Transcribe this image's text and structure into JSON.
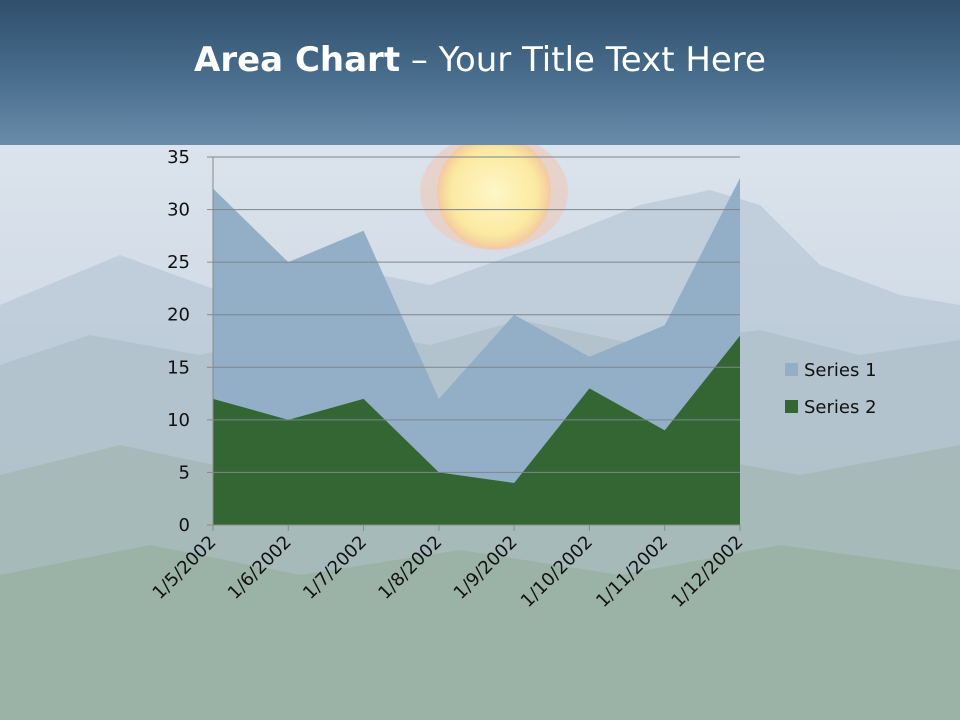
{
  "title": {
    "bold": "Area Chart",
    "rest": " – Your Title Text Here"
  },
  "colors": {
    "series1": "#93afc7",
    "series2": "#336633",
    "title_band": "#3f6283"
  },
  "chart_data": {
    "type": "area",
    "categories": [
      "1/5/2002",
      "1/6/2002",
      "1/7/2002",
      "1/8/2002",
      "1/9/2002",
      "1/10/2002",
      "1/11/2002",
      "1/12/2002"
    ],
    "series": [
      {
        "name": "Series 1",
        "values": [
          32,
          25,
          28,
          12,
          20,
          16,
          19,
          33
        ]
      },
      {
        "name": "Series 2",
        "values": [
          12,
          10,
          12,
          5,
          4,
          13,
          9,
          18
        ]
      }
    ],
    "ylim": [
      0,
      35
    ],
    "yticks": [
      "0",
      "5",
      "10",
      "15",
      "20",
      "25",
      "30",
      "35"
    ],
    "grid": true,
    "legend": "right"
  }
}
